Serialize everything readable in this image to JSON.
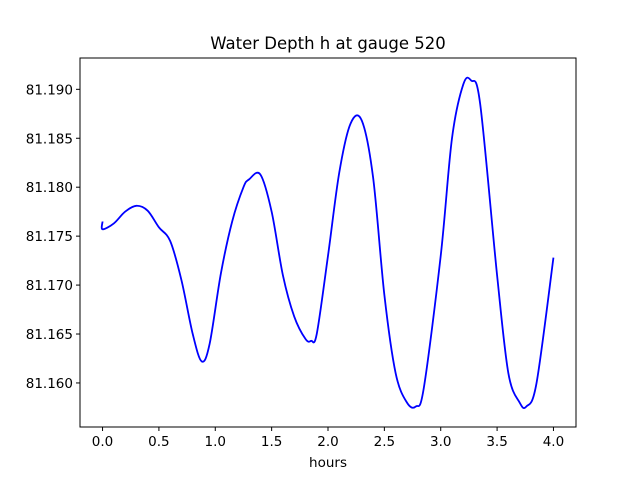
{
  "chart_data": {
    "type": "line",
    "title": "Water Depth h at gauge 520",
    "xlabel": "hours",
    "ylabel": "",
    "xlim": [
      -0.2,
      4.2
    ],
    "ylim": [
      81.1555,
      81.1932
    ],
    "xticks": [
      0.0,
      0.5,
      1.0,
      1.5,
      2.0,
      2.5,
      3.0,
      3.5,
      4.0
    ],
    "xtick_labels": [
      "0.0",
      "0.5",
      "1.0",
      "1.5",
      "2.0",
      "2.5",
      "3.0",
      "3.5",
      "4.0"
    ],
    "yticks": [
      81.16,
      81.165,
      81.17,
      81.175,
      81.18,
      81.185,
      81.19
    ],
    "ytick_labels": [
      "81.160",
      "81.165",
      "81.170",
      "81.175",
      "81.180",
      "81.185",
      "81.190"
    ],
    "grid": false,
    "series": [
      {
        "color": "#0000ff",
        "x": [
          0.0,
          0.0,
          0.1,
          0.2,
          0.3,
          0.4,
          0.5,
          0.6,
          0.7,
          0.8,
          0.88,
          0.95,
          1.05,
          1.15,
          1.25,
          1.3,
          1.4,
          1.5,
          1.6,
          1.7,
          1.8,
          1.85,
          1.9,
          2.0,
          2.1,
          2.2,
          2.3,
          2.4,
          2.5,
          2.6,
          2.7,
          2.78,
          2.85,
          3.0,
          3.1,
          3.2,
          3.27,
          3.35,
          3.5,
          3.6,
          3.7,
          3.76,
          3.85,
          4.0
        ],
        "y": [
          81.1765,
          81.1757,
          81.1763,
          81.1775,
          81.1781,
          81.1776,
          81.1759,
          81.1745,
          81.1705,
          81.165,
          81.1622,
          81.164,
          81.1712,
          81.1765,
          81.18,
          81.1808,
          81.1813,
          81.1775,
          81.171,
          81.1668,
          81.1645,
          81.1643,
          81.165,
          81.173,
          81.1815,
          81.1865,
          81.1868,
          81.181,
          81.169,
          81.161,
          81.158,
          81.1576,
          81.1595,
          81.173,
          81.185,
          81.1905,
          81.1909,
          81.1885,
          81.171,
          81.161,
          81.158,
          81.1576,
          81.16,
          81.1728
        ]
      }
    ]
  }
}
